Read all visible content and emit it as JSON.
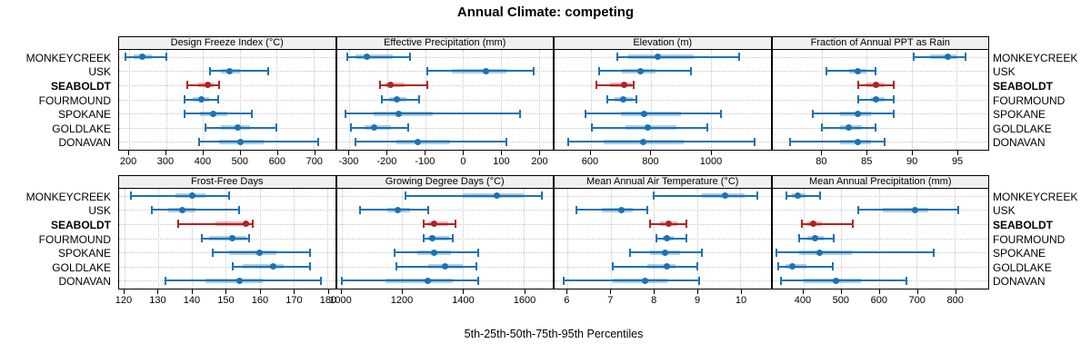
{
  "title": "Annual Climate: competing",
  "footer": "5th-25th-50th-75th-95th Percentiles",
  "stations": [
    "MONKEYCREEK",
    "USK",
    "SEABOLDT",
    "FOURMOUND",
    "SPOKANE",
    "GOLDLAKE",
    "DONAVAN"
  ],
  "highlight_station": "SEABOLDT",
  "colors": {
    "series": "#1b72b4",
    "series_band": "rgba(27,114,180,0.35)",
    "highlight": "#b22222",
    "highlight_band": "rgba(178,34,34,0.33)",
    "header_bg": "#f0f0f0",
    "grid": "#c6c6c6",
    "border": "#000000"
  },
  "chart_data": {
    "type": "percentile-dotplot",
    "percentiles": [
      "5th",
      "25th",
      "50th",
      "75th",
      "95th"
    ],
    "legend_position": "none",
    "grid": "dotted",
    "layout": "2 rows x 4 columns, station labels on both sides",
    "panels": [
      {
        "title": "Design Freeze Index (°C)",
        "row": 0,
        "col": 0,
        "xmin": 173,
        "xmax": 758,
        "ticks": [
          200,
          300,
          400,
          500,
          600,
          700
        ],
        "values": [
          [
            190,
            213,
            235,
            262,
            300
          ],
          [
            420,
            448,
            472,
            500,
            578
          ],
          [
            358,
            388,
            413,
            428,
            445
          ],
          [
            350,
            372,
            395,
            417,
            442
          ],
          [
            350,
            392,
            428,
            466,
            533
          ],
          [
            406,
            450,
            495,
            528,
            598
          ],
          [
            390,
            443,
            503,
            565,
            712
          ]
        ]
      },
      {
        "title": "Effective Precipitation (mm)",
        "row": 0,
        "col": 1,
        "xmin": -333,
        "xmax": 237,
        "ticks": [
          -300,
          -200,
          -100,
          0,
          100,
          200
        ],
        "values": [
          [
            -305,
            -285,
            -255,
            -185,
            -140
          ],
          [
            -95,
            -30,
            60,
            115,
            187
          ],
          [
            -218,
            -205,
            -192,
            -155,
            -95
          ],
          [
            -215,
            -195,
            -175,
            -150,
            -115
          ],
          [
            -310,
            -235,
            -170,
            -80,
            150
          ],
          [
            -295,
            -260,
            -235,
            -190,
            -145
          ],
          [
            -285,
            -175,
            -120,
            -35,
            115
          ]
        ]
      },
      {
        "title": "Elevation (m)",
        "row": 0,
        "col": 2,
        "xmin": 480,
        "xmax": 1200,
        "ticks": [
          600,
          800,
          1000
        ],
        "values": [
          [
            688,
            725,
            825,
            945,
            1095
          ],
          [
            630,
            705,
            765,
            815,
            935
          ],
          [
            618,
            665,
            712,
            738,
            745
          ],
          [
            655,
            680,
            710,
            742,
            753
          ],
          [
            582,
            700,
            778,
            900,
            1035
          ],
          [
            605,
            715,
            790,
            885,
            990
          ],
          [
            525,
            645,
            775,
            912,
            1148
          ]
        ]
      },
      {
        "title": "Fraction of Annual PPT as Rain",
        "row": 0,
        "col": 3,
        "xmin": 74.5,
        "xmax": 98.5,
        "ticks": [
          80,
          85,
          90,
          95
        ],
        "values": [
          [
            90.2,
            92,
            94,
            95,
            96
          ],
          [
            80.5,
            83,
            84,
            85,
            86
          ],
          [
            84,
            85,
            86,
            87,
            88
          ],
          [
            84,
            85.5,
            86,
            87,
            88
          ],
          [
            79,
            82,
            84,
            85.5,
            88
          ],
          [
            80,
            82,
            83,
            84.5,
            86
          ],
          [
            76.5,
            82,
            84,
            85.5,
            87
          ]
        ]
      },
      {
        "title": "Frost-Free Days",
        "row": 1,
        "col": 0,
        "xmin": 118.4,
        "xmax": 182.3,
        "ticks": [
          120,
          130,
          140,
          150,
          160,
          170,
          180
        ],
        "values": [
          [
            122,
            135,
            140,
            144,
            151
          ],
          [
            128,
            133,
            137,
            141,
            154
          ],
          [
            136,
            147,
            156,
            157,
            158
          ],
          [
            143,
            145,
            152,
            156,
            157
          ],
          [
            146,
            151,
            160,
            165,
            175
          ],
          [
            152,
            155,
            164,
            167,
            175
          ],
          [
            132,
            144,
            154,
            161,
            178
          ]
        ]
      },
      {
        "title": "Growing Degree Days (°C)",
        "row": 1,
        "col": 1,
        "xmin": 985,
        "xmax": 1695,
        "ticks": [
          1000,
          1200,
          1400,
          1600
        ],
        "values": [
          [
            1210,
            1400,
            1510,
            1600,
            1660
          ],
          [
            1060,
            1150,
            1185,
            1225,
            1285
          ],
          [
            1270,
            1285,
            1305,
            1350,
            1375
          ],
          [
            1270,
            1285,
            1300,
            1355,
            1365
          ],
          [
            1175,
            1250,
            1305,
            1360,
            1450
          ],
          [
            1180,
            1285,
            1340,
            1400,
            1445
          ],
          [
            1000,
            1145,
            1285,
            1365,
            1450
          ]
        ]
      },
      {
        "title": "Mean Annual Air Temperature (°C)",
        "row": 1,
        "col": 2,
        "xmin": 5.7,
        "xmax": 10.7,
        "ticks": [
          6,
          7,
          8,
          9,
          10
        ],
        "values": [
          [
            8.0,
            9.1,
            9.65,
            10.1,
            10.4
          ],
          [
            6.2,
            6.8,
            7.25,
            7.5,
            7.85
          ],
          [
            7.9,
            8.15,
            8.35,
            8.55,
            8.75
          ],
          [
            8.05,
            8.2,
            8.3,
            8.45,
            8.75
          ],
          [
            7.45,
            7.9,
            8.25,
            8.6,
            9.1
          ],
          [
            7.05,
            7.85,
            8.3,
            8.5,
            9.0
          ],
          [
            5.9,
            7.05,
            7.8,
            8.3,
            9.05
          ]
        ]
      },
      {
        "title": "Mean Annual Precipitation (mm)",
        "row": 1,
        "col": 3,
        "xmin": 318,
        "xmax": 889,
        "ticks": [
          400,
          500,
          600,
          700,
          800
        ],
        "values": [
          [
            355,
            370,
            385,
            405,
            445
          ],
          [
            545,
            610,
            695,
            730,
            810
          ],
          [
            395,
            410,
            425,
            450,
            530
          ],
          [
            390,
            410,
            430,
            455,
            480
          ],
          [
            328,
            390,
            442,
            528,
            745
          ],
          [
            333,
            352,
            372,
            408,
            479
          ],
          [
            342,
            400,
            487,
            553,
            673
          ]
        ]
      }
    ]
  }
}
